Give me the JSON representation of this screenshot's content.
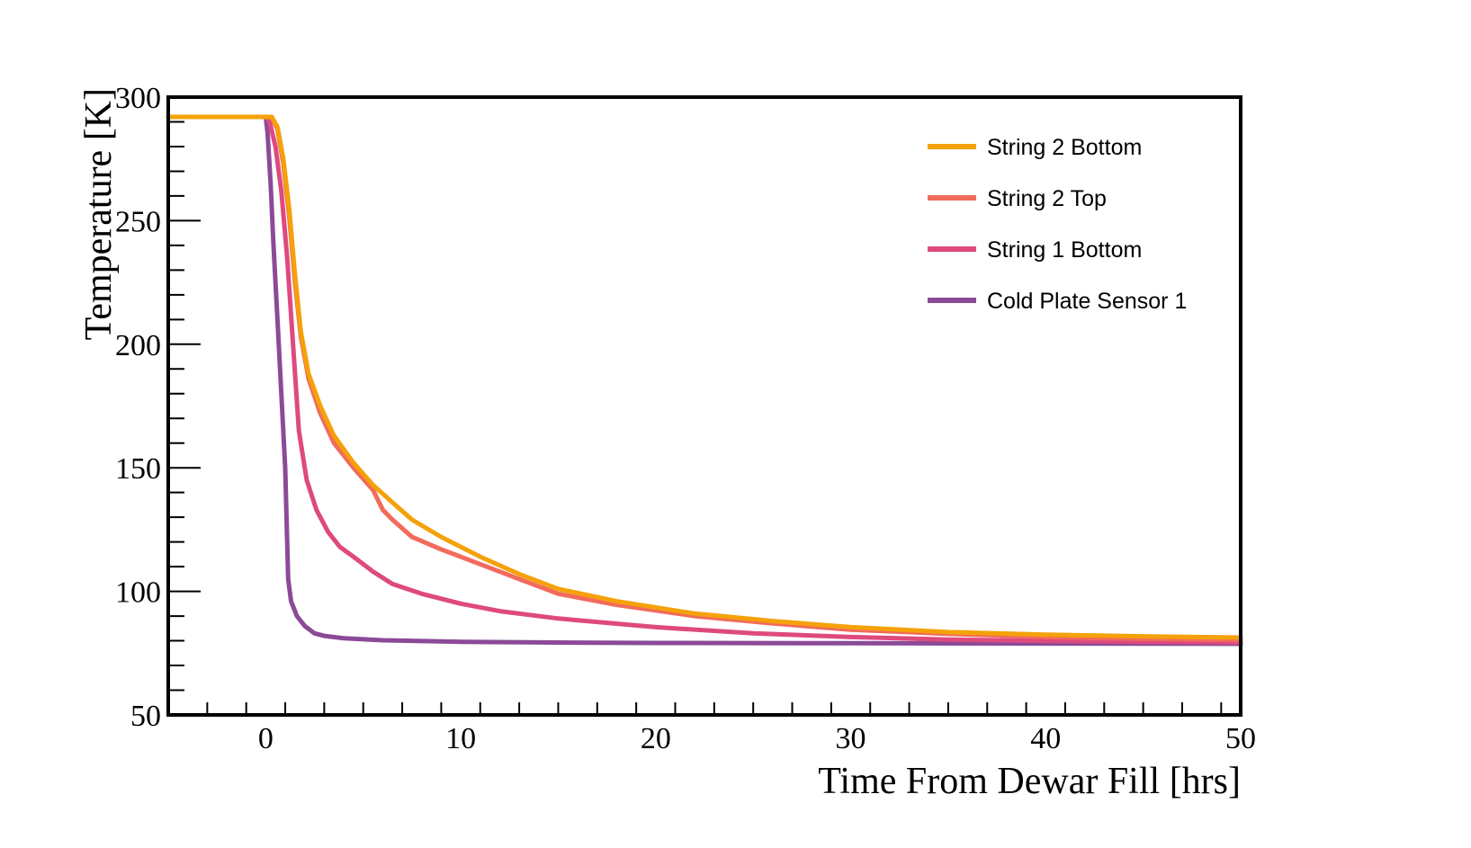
{
  "chart_data": {
    "type": "line",
    "title": "",
    "xlabel": "Time From Dewar Fill [hrs]",
    "ylabel": "Temperature [K]",
    "xlim": [
      -5,
      50
    ],
    "ylim": [
      50,
      300
    ],
    "xticks": [
      0,
      10,
      20,
      30,
      40,
      50
    ],
    "yticks": [
      50,
      100,
      150,
      200,
      250,
      300
    ],
    "legend_position": "top-right",
    "series": [
      {
        "name": "String 2 Bottom",
        "color": "#f5a10a",
        "points": [
          [
            -5,
            292
          ],
          [
            0,
            292
          ],
          [
            0.3,
            292
          ],
          [
            0.6,
            288
          ],
          [
            0.9,
            275
          ],
          [
            1.2,
            255
          ],
          [
            1.5,
            228
          ],
          [
            1.8,
            205
          ],
          [
            2.2,
            188
          ],
          [
            2.8,
            175
          ],
          [
            3.5,
            163
          ],
          [
            4.5,
            152
          ],
          [
            5.5,
            143
          ],
          [
            6.5,
            136
          ],
          [
            7.5,
            129
          ],
          [
            9,
            122
          ],
          [
            11,
            114
          ],
          [
            13,
            107
          ],
          [
            15,
            101
          ],
          [
            18,
            96
          ],
          [
            22,
            91
          ],
          [
            26,
            88
          ],
          [
            30,
            85.5
          ],
          [
            35,
            83.5
          ],
          [
            40,
            82.5
          ],
          [
            45,
            81.8
          ],
          [
            50,
            81.3
          ]
        ]
      },
      {
        "name": "String 2 Top",
        "color": "#f26b5b",
        "points": [
          [
            -5,
            292
          ],
          [
            0,
            292
          ],
          [
            0.3,
            292
          ],
          [
            0.6,
            287
          ],
          [
            0.9,
            273
          ],
          [
            1.2,
            252
          ],
          [
            1.5,
            225
          ],
          [
            1.8,
            203
          ],
          [
            2.2,
            186
          ],
          [
            2.8,
            172
          ],
          [
            3.5,
            160
          ],
          [
            4.5,
            150
          ],
          [
            5.5,
            141
          ],
          [
            6,
            133
          ],
          [
            6.5,
            129
          ],
          [
            7.5,
            122
          ],
          [
            9,
            117
          ],
          [
            11,
            111
          ],
          [
            13,
            105
          ],
          [
            15,
            99
          ],
          [
            18,
            94.5
          ],
          [
            22,
            90
          ],
          [
            26,
            87
          ],
          [
            30,
            84.5
          ],
          [
            35,
            82.8
          ],
          [
            40,
            81.5
          ],
          [
            45,
            80.8
          ],
          [
            50,
            80.3
          ]
        ]
      },
      {
        "name": "String 1 Bottom",
        "color": "#de4a7e",
        "points": [
          [
            -5,
            292
          ],
          [
            0,
            292
          ],
          [
            0.2,
            290
          ],
          [
            0.5,
            280
          ],
          [
            0.8,
            262
          ],
          [
            1.1,
            235
          ],
          [
            1.4,
            200
          ],
          [
            1.7,
            165
          ],
          [
            2.1,
            145
          ],
          [
            2.6,
            133
          ],
          [
            3.2,
            124
          ],
          [
            3.8,
            118
          ],
          [
            4.5,
            114
          ],
          [
            5.5,
            108
          ],
          [
            6.5,
            103
          ],
          [
            8,
            99
          ],
          [
            10,
            95
          ],
          [
            12,
            92
          ],
          [
            15,
            89
          ],
          [
            20,
            85.5
          ],
          [
            25,
            83
          ],
          [
            30,
            81.5
          ],
          [
            35,
            80.5
          ],
          [
            40,
            80
          ],
          [
            45,
            79.6
          ],
          [
            50,
            79.3
          ]
        ]
      },
      {
        "name": "Cold Plate Sensor 1",
        "color": "#8b4a97",
        "points": [
          [
            -5,
            292
          ],
          [
            0,
            292
          ],
          [
            0.1,
            285
          ],
          [
            0.25,
            265
          ],
          [
            0.4,
            240
          ],
          [
            0.6,
            210
          ],
          [
            0.8,
            180
          ],
          [
            1.0,
            150
          ],
          [
            1.1,
            120
          ],
          [
            1.15,
            105
          ],
          [
            1.3,
            96
          ],
          [
            1.6,
            90
          ],
          [
            2,
            86
          ],
          [
            2.5,
            83
          ],
          [
            3,
            82
          ],
          [
            4,
            81
          ],
          [
            6,
            80.2
          ],
          [
            10,
            79.6
          ],
          [
            15,
            79.3
          ],
          [
            20,
            79.1
          ],
          [
            30,
            79
          ],
          [
            40,
            78.9
          ],
          [
            50,
            78.8
          ]
        ]
      }
    ]
  }
}
